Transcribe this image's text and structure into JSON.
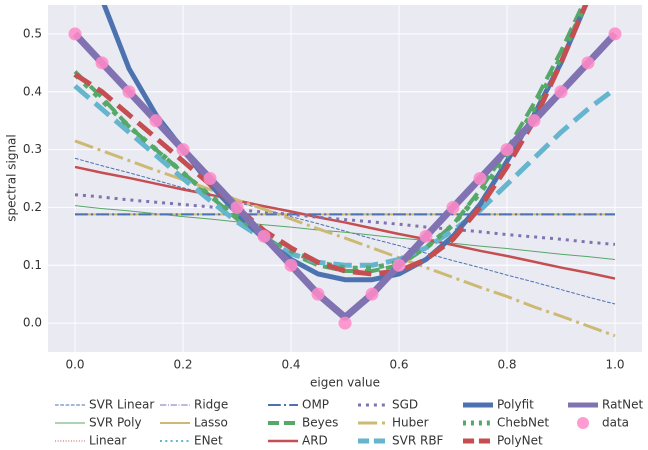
{
  "chart_data": {
    "type": "line",
    "xlabel": "eigen value",
    "ylabel": "spectral signal",
    "x": [
      0,
      0.05,
      0.1,
      0.15,
      0.2,
      0.25,
      0.3,
      0.35,
      0.4,
      0.45,
      0.5,
      0.55,
      0.6,
      0.65,
      0.7,
      0.75,
      0.8,
      0.85,
      0.9,
      0.95,
      1.0
    ],
    "xlim": [
      -0.05,
      1.05
    ],
    "ylim": [
      -0.05,
      0.55
    ],
    "xticks": [
      {
        "value": 0,
        "label": "0.0"
      },
      {
        "value": 0.2,
        "label": "0.2"
      },
      {
        "value": 0.4,
        "label": "0.4"
      },
      {
        "value": 0.6,
        "label": "0.6"
      },
      {
        "value": 0.8,
        "label": "0.8"
      },
      {
        "value": 1.0,
        "label": "1.0"
      }
    ],
    "yticks": [
      {
        "value": 0,
        "label": "0.0"
      },
      {
        "value": 0.1,
        "label": "0.1"
      },
      {
        "value": 0.2,
        "label": "0.2"
      },
      {
        "value": 0.3,
        "label": "0.3"
      },
      {
        "value": 0.4,
        "label": "0.4"
      },
      {
        "value": 0.5,
        "label": "0.5"
      }
    ],
    "grid": true,
    "legend": "bottom",
    "series": [
      {
        "name": "SVR Linear",
        "color": "#4c72b0",
        "linestyle": "--",
        "linewidth": 1,
        "values": [
          0.285,
          0.272,
          0.26,
          0.247,
          0.234,
          0.222,
          0.209,
          0.197,
          0.184,
          0.172,
          0.159,
          0.146,
          0.134,
          0.121,
          0.108,
          0.096,
          0.083,
          0.071,
          0.058,
          0.045,
          0.033
        ]
      },
      {
        "name": "SVR Poly",
        "color": "#55a868",
        "linestyle": "-",
        "linewidth": 1,
        "values": [
          0.203,
          0.198,
          0.194,
          0.189,
          0.184,
          0.18,
          0.175,
          0.17,
          0.166,
          0.161,
          0.157,
          0.152,
          0.147,
          0.143,
          0.138,
          0.133,
          0.129,
          0.124,
          0.119,
          0.115,
          0.11
        ]
      },
      {
        "name": "Linear",
        "color": "#c44e52",
        "linestyle": ":",
        "linewidth": 1,
        "values": [
          0.188,
          0.188,
          0.188,
          0.188,
          0.188,
          0.188,
          0.188,
          0.188,
          0.188,
          0.188,
          0.188,
          0.188,
          0.188,
          0.188,
          0.188,
          0.188,
          0.188,
          0.188,
          0.188,
          0.188,
          0.188
        ]
      },
      {
        "name": "Ridge",
        "color": "#8172b2",
        "linestyle": "-.",
        "linewidth": 1,
        "values": [
          0.188,
          0.188,
          0.188,
          0.188,
          0.188,
          0.188,
          0.188,
          0.188,
          0.188,
          0.188,
          0.188,
          0.188,
          0.188,
          0.188,
          0.188,
          0.188,
          0.188,
          0.188,
          0.188,
          0.188,
          0.188
        ]
      },
      {
        "name": "Lasso",
        "color": "#ccb974",
        "linestyle": "-",
        "linewidth": 2,
        "values": [
          0.188,
          0.188,
          0.188,
          0.188,
          0.188,
          0.188,
          0.188,
          0.188,
          0.188,
          0.188,
          0.188,
          0.188,
          0.188,
          0.188,
          0.188,
          0.188,
          0.188,
          0.188,
          0.188,
          0.188,
          0.188
        ]
      },
      {
        "name": "ENet",
        "color": "#64b5cd",
        "linestyle": ":",
        "linewidth": 2,
        "values": [
          0.188,
          0.188,
          0.188,
          0.188,
          0.188,
          0.188,
          0.188,
          0.188,
          0.188,
          0.188,
          0.188,
          0.188,
          0.188,
          0.188,
          0.188,
          0.188,
          0.188,
          0.188,
          0.188,
          0.188,
          0.188
        ]
      },
      {
        "name": "OMP",
        "color": "#4c72b0",
        "linestyle": "-.",
        "linewidth": 2,
        "values": [
          0.188,
          0.188,
          0.188,
          0.188,
          0.188,
          0.188,
          0.188,
          0.188,
          0.188,
          0.188,
          0.188,
          0.188,
          0.188,
          0.188,
          0.188,
          0.188,
          0.188,
          0.188,
          0.188,
          0.188,
          0.188
        ]
      },
      {
        "name": "Beyes",
        "color": "#55a868",
        "linestyle": "--",
        "linewidth": 4,
        "values": [
          0.435,
          0.39,
          0.34,
          0.3,
          0.26,
          0.22,
          0.18,
          0.15,
          0.12,
          0.1,
          0.09,
          0.09,
          0.1,
          0.13,
          0.17,
          0.23,
          0.3,
          0.38,
          0.47,
          0.57,
          0.68
        ]
      },
      {
        "name": "ARD",
        "color": "#c44e52",
        "linestyle": "-",
        "linewidth": 2.5,
        "values": [
          0.27,
          0.26,
          0.251,
          0.241,
          0.231,
          0.222,
          0.212,
          0.202,
          0.193,
          0.183,
          0.174,
          0.164,
          0.154,
          0.145,
          0.135,
          0.125,
          0.116,
          0.106,
          0.096,
          0.087,
          0.077
        ]
      },
      {
        "name": "SGD",
        "color": "#8172b2",
        "linestyle": ":",
        "linewidth": 3,
        "values": [
          0.222,
          0.218,
          0.213,
          0.209,
          0.205,
          0.201,
          0.196,
          0.192,
          0.188,
          0.183,
          0.179,
          0.175,
          0.171,
          0.166,
          0.162,
          0.158,
          0.153,
          0.149,
          0.145,
          0.14,
          0.136
        ]
      },
      {
        "name": "Huber",
        "color": "#ccb974",
        "linestyle": "-.",
        "linewidth": 3,
        "values": [
          0.315,
          0.298,
          0.281,
          0.264,
          0.248,
          0.231,
          0.213,
          0.197,
          0.18,
          0.163,
          0.147,
          0.13,
          0.113,
          0.096,
          0.079,
          0.062,
          0.046,
          0.028,
          0.012,
          -0.005,
          -0.022
        ]
      },
      {
        "name": "SVR RBF",
        "color": "#64b5cd",
        "linestyle": "--",
        "linewidth": 5,
        "values": [
          0.41,
          0.37,
          0.33,
          0.29,
          0.25,
          0.212,
          0.175,
          0.145,
          0.12,
          0.105,
          0.1,
          0.1,
          0.11,
          0.13,
          0.16,
          0.195,
          0.24,
          0.285,
          0.33,
          0.37,
          0.405
        ]
      },
      {
        "name": "Polyfit",
        "color": "#4c72b0",
        "linestyle": "-",
        "linewidth": 5,
        "values": [
          0.68,
          0.56,
          0.44,
          0.36,
          0.3,
          0.24,
          0.19,
          0.145,
          0.11,
          0.085,
          0.075,
          0.075,
          0.085,
          0.11,
          0.15,
          0.205,
          0.28,
          0.36,
          0.45,
          0.56,
          0.68
        ]
      },
      {
        "name": "ChebNet",
        "color": "#55a868",
        "linestyle": ":",
        "linewidth": 5,
        "values": [
          0.43,
          0.385,
          0.34,
          0.3,
          0.26,
          0.22,
          0.185,
          0.15,
          0.125,
          0.105,
          0.095,
          0.095,
          0.105,
          0.13,
          0.17,
          0.225,
          0.29,
          0.37,
          0.46,
          0.56,
          0.67
        ]
      },
      {
        "name": "PolyNet",
        "color": "#c44e52",
        "linestyle": "--",
        "linewidth": 5,
        "values": [
          0.43,
          0.4,
          0.36,
          0.32,
          0.28,
          0.24,
          0.2,
          0.16,
          0.13,
          0.105,
          0.09,
          0.085,
          0.09,
          0.11,
          0.145,
          0.2,
          0.27,
          0.35,
          0.45,
          0.56,
          0.68
        ]
      },
      {
        "name": "RatNet",
        "color": "#8172b2",
        "linestyle": "-",
        "linewidth": 7,
        "values": [
          0.5,
          0.45,
          0.4,
          0.35,
          0.3,
          0.25,
          0.2,
          0.15,
          0.1,
          0.05,
          0.01,
          0.05,
          0.1,
          0.15,
          0.2,
          0.25,
          0.3,
          0.35,
          0.4,
          0.45,
          0.5
        ]
      },
      {
        "name": "data",
        "color": "#ff8ac8",
        "linestyle": "none",
        "marker": "o",
        "values": [
          0.5,
          0.45,
          0.4,
          0.35,
          0.3,
          0.25,
          0.2,
          0.15,
          0.1,
          0.05,
          0,
          0.05,
          0.1,
          0.15,
          0.2,
          0.25,
          0.3,
          0.35,
          0.4,
          0.45,
          0.5
        ]
      }
    ]
  }
}
